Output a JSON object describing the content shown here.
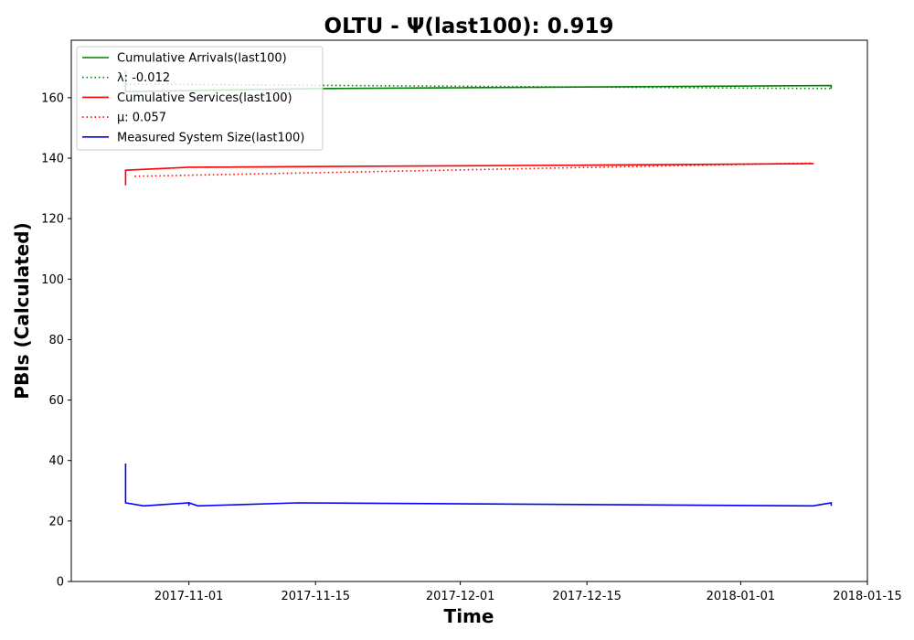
{
  "chart_data": {
    "type": "line",
    "title": "OLTU -  Ψ(last100): 0.919",
    "xlabel": "Time",
    "ylabel": "PBIs (Calculated)",
    "x_range": [
      "2017-10-19",
      "2018-01-15"
    ],
    "ylim": [
      0,
      179
    ],
    "yticks": [
      0,
      20,
      40,
      60,
      80,
      100,
      120,
      140,
      160
    ],
    "xticks": [
      {
        "date": "2017-11-01",
        "label": "2017-11-01"
      },
      {
        "date": "2017-11-15",
        "label": "2017-11-15"
      },
      {
        "date": "2017-12-01",
        "label": "2017-12-01"
      },
      {
        "date": "2017-12-15",
        "label": "2017-12-15"
      },
      {
        "date": "2018-01-01",
        "label": "2018-01-01"
      },
      {
        "date": "2018-01-15",
        "label": "2018-01-15"
      }
    ],
    "grid": false,
    "legend_position": "top-left",
    "series": [
      {
        "name": "Cumulative Arrivals(last100)",
        "color": "#008000",
        "style": "solid",
        "points": [
          [
            "2017-10-25",
            169
          ],
          [
            "2017-10-25",
            162
          ],
          [
            "2017-11-15",
            163
          ],
          [
            "2018-01-11",
            164
          ],
          [
            "2018-01-11",
            163
          ]
        ]
      },
      {
        "name": "λ: -0.012",
        "color": "#008000",
        "style": "dotted",
        "points": [
          [
            "2017-10-25",
            164.5
          ],
          [
            "2018-01-11",
            163
          ]
        ]
      },
      {
        "name": "Cumulative Services(last100)",
        "color": "#ff0000",
        "style": "solid",
        "points": [
          [
            "2017-10-25",
            131
          ],
          [
            "2017-10-25",
            136
          ],
          [
            "2017-11-01",
            137
          ],
          [
            "2017-12-15",
            137.7
          ],
          [
            "2018-01-09",
            138.2
          ],
          [
            "2018-01-09",
            138
          ]
        ]
      },
      {
        "name": "μ: 0.057",
        "color": "#ff0000",
        "style": "dotted",
        "points": [
          [
            "2017-10-26",
            134
          ],
          [
            "2018-01-09",
            138.4
          ]
        ]
      },
      {
        "name": "Measured System Size(last100)",
        "color": "#0000ff",
        "style": "solid",
        "points": [
          [
            "2017-10-25",
            39
          ],
          [
            "2017-10-25",
            33
          ],
          [
            "2017-10-25",
            36
          ],
          [
            "2017-10-25",
            26
          ],
          [
            "2017-10-27",
            25
          ],
          [
            "2017-11-01",
            26
          ],
          [
            "2017-11-01",
            25
          ],
          [
            "2017-11-01",
            26
          ],
          [
            "2017-11-02",
            25
          ],
          [
            "2017-11-13",
            26
          ],
          [
            "2018-01-09",
            25
          ],
          [
            "2018-01-11",
            26
          ],
          [
            "2018-01-11",
            25
          ]
        ]
      }
    ]
  }
}
